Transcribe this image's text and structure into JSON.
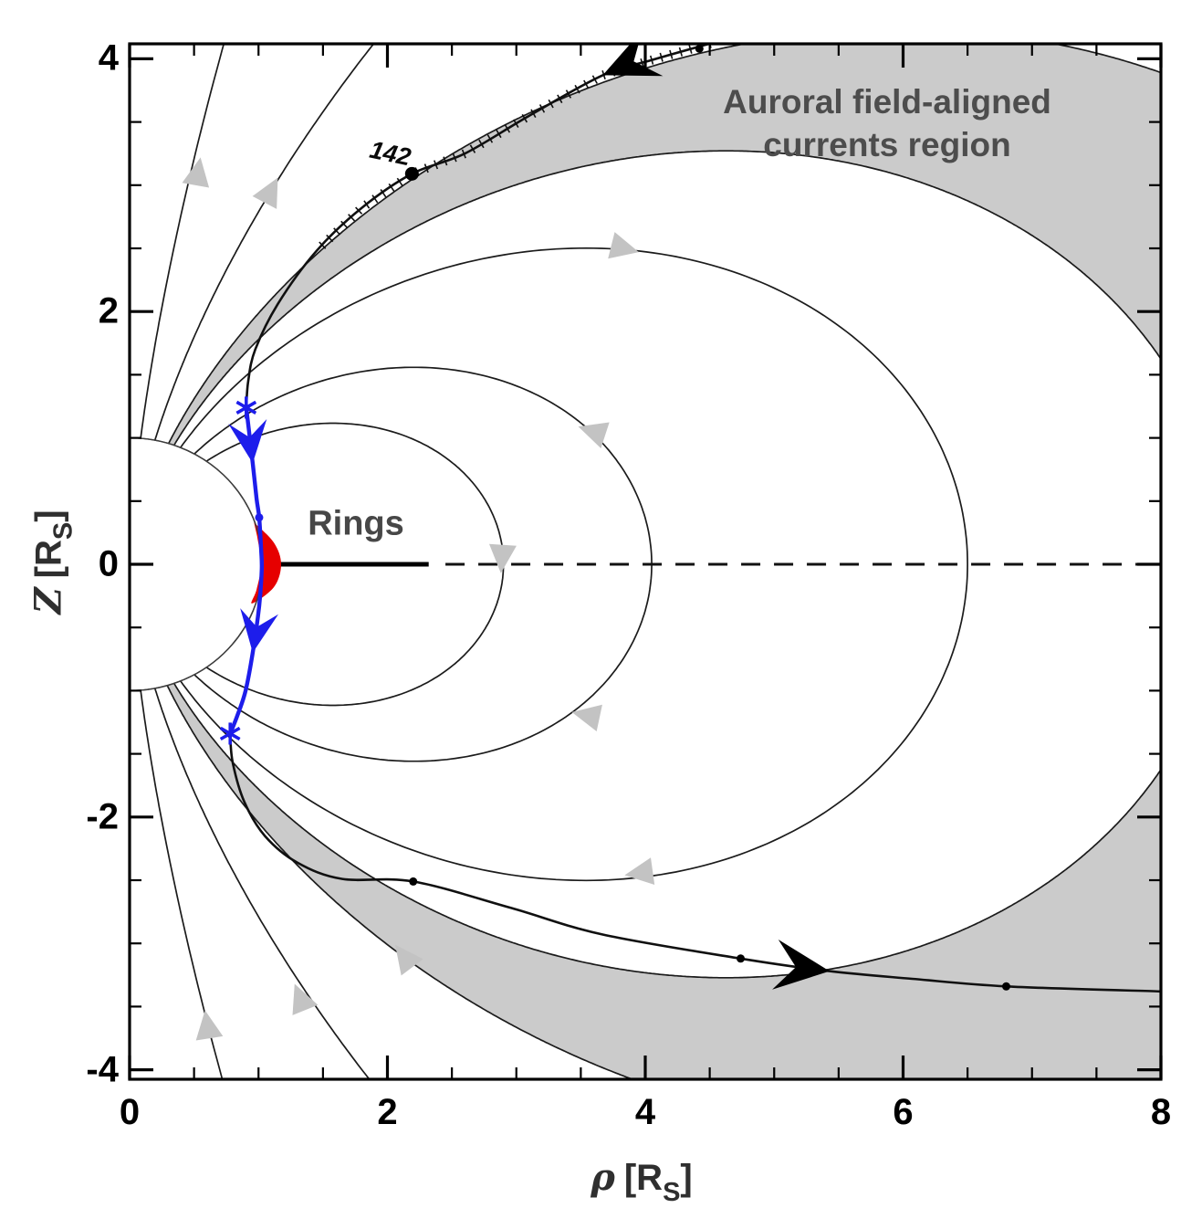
{
  "labels": {
    "auroral_line1": "Auroral field-aligned",
    "auroral_line2": "currents region",
    "rings": "Rings",
    "orbit": "142",
    "x_axis_symbol": "ρ",
    "y_axis_symbol": "Z",
    "axis_bracket_open": "[R",
    "axis_sub": "S",
    "axis_bracket_close": "]"
  },
  "chart_data": {
    "type": "line",
    "title": "Saturn meridian-plane magnetic field geometry with auroral field-aligned current regions and spacecraft trajectory",
    "xlabel": "ρ [R_S]",
    "ylabel": "Z [R_S]",
    "xlim": [
      0,
      8
    ],
    "ylim": [
      -4.1,
      4.1
    ],
    "grid": false,
    "x_ticks": {
      "major": [
        0,
        2,
        4,
        6,
        8
      ],
      "labels": [
        "0",
        "2",
        "4",
        "6",
        "8"
      ],
      "minor_step": 0.5
    },
    "y_ticks": {
      "major": [
        4,
        2,
        0,
        -2,
        -4
      ],
      "labels": [
        "4",
        "2",
        "0",
        "-2",
        "-4"
      ],
      "minor_step": 0.5
    },
    "closed_field_lines_L": [
      2.9,
      4.05,
      6.5
    ],
    "open_field_lines_L_north": [
      8.5,
      11,
      26,
      137
    ],
    "open_field_lines_L_south": [
      8.5,
      11.8,
      26,
      137
    ],
    "auroral_band_north_L": [
      8.5,
      11
    ],
    "auroral_band_south_L": [
      8.5,
      11.8
    ],
    "planet_radius_rs": 1.0,
    "rings_solid_rho": [
      1.03,
      2.32
    ],
    "equator_dashed_rho": [
      2.45,
      8.0
    ],
    "red_zone": {
      "outer_rho_z": [
        [
          0.965,
          0.33
        ],
        [
          1.12,
          0.17
        ],
        [
          1.175,
          0.0
        ],
        [
          1.12,
          -0.18
        ],
        [
          0.95,
          -0.31
        ]
      ],
      "inner_rho_z": [
        [
          0.985,
          -0.2
        ],
        [
          1.02,
          0.0
        ],
        [
          0.99,
          0.22
        ]
      ]
    },
    "trajectory": {
      "label": "142",
      "inbound_rho_z": [
        [
          4.5,
          4.12
        ],
        [
          4.05,
          3.99
        ],
        [
          3.67,
          3.87
        ],
        [
          3.1,
          3.55
        ],
        [
          2.6,
          3.25
        ],
        [
          2.19,
          3.09
        ],
        [
          1.8,
          2.82
        ],
        [
          1.45,
          2.48
        ],
        [
          1.15,
          2.06
        ],
        [
          0.975,
          1.7
        ],
        [
          0.92,
          1.45
        ],
        [
          0.905,
          1.24
        ]
      ],
      "hatch_until_index": 7,
      "blue_segment_rho_z": [
        [
          0.905,
          1.24
        ],
        [
          0.93,
          1.02
        ],
        [
          0.955,
          0.8
        ],
        [
          0.985,
          0.52
        ],
        [
          1.005,
          0.37
        ],
        [
          1.02,
          0.12
        ],
        [
          1.025,
          -0.04
        ],
        [
          1.005,
          -0.33
        ],
        [
          0.955,
          -0.7
        ],
        [
          0.9,
          -1.0
        ],
        [
          0.835,
          -1.2
        ],
        [
          0.78,
          -1.34
        ]
      ],
      "outbound_rho_z": [
        [
          0.78,
          -1.34
        ],
        [
          0.8,
          -1.57
        ],
        [
          0.89,
          -1.88
        ],
        [
          1.05,
          -2.15
        ],
        [
          1.3,
          -2.36
        ],
        [
          1.65,
          -2.49
        ],
        [
          2.2,
          -2.51
        ],
        [
          2.96,
          -2.72
        ],
        [
          3.67,
          -2.93
        ],
        [
          4.74,
          -3.12
        ],
        [
          5.43,
          -3.22
        ],
        [
          6.07,
          -3.28
        ],
        [
          6.8,
          -3.34
        ],
        [
          8.0,
          -3.38
        ]
      ],
      "small_dots_rho_z": [
        [
          4.42,
          4.08
        ],
        [
          2.2,
          -2.51
        ],
        [
          4.74,
          -3.12
        ],
        [
          6.8,
          -3.34
        ]
      ],
      "orbit_dot_rho_z": [
        2.19,
        3.09
      ],
      "ring_crossing_stars_rho_z": [
        [
          0.905,
          1.24
        ],
        [
          0.78,
          -1.34
        ]
      ],
      "blue_dot_rho_z": [
        1.005,
        0.37
      ],
      "black_arrows": [
        [
          3.67,
          3.87,
          156
        ],
        [
          5.43,
          -3.22,
          7
        ]
      ],
      "blue_arrows": [
        [
          0.955,
          0.8,
          83
        ],
        [
          0.955,
          -0.7,
          99
        ]
      ]
    },
    "field_direction_arrows": [
      [
        0.55,
        3.22,
        -80
      ],
      [
        1.15,
        3.06,
        -62
      ],
      [
        3.95,
        2.47,
        14
      ],
      [
        3.48,
        1.09,
        -162
      ],
      [
        2.88,
        -0.07,
        94
      ],
      [
        3.43,
        -1.17,
        -168
      ],
      [
        3.84,
        -2.46,
        172
      ],
      [
        2.06,
        -3.01,
        -127
      ],
      [
        1.28,
        -3.32,
        -112
      ],
      [
        0.585,
        -3.53,
        -99
      ]
    ],
    "colors": {
      "band_gray": "#cbcbcb",
      "arrow_gray": "#c3c3c3",
      "field_line": "#1b1b1b",
      "trajectory": "#101010",
      "blue": "#1d1deb",
      "red": "#e60000",
      "annotation_gray": "#4d4d4d",
      "axis": "#000000"
    }
  }
}
